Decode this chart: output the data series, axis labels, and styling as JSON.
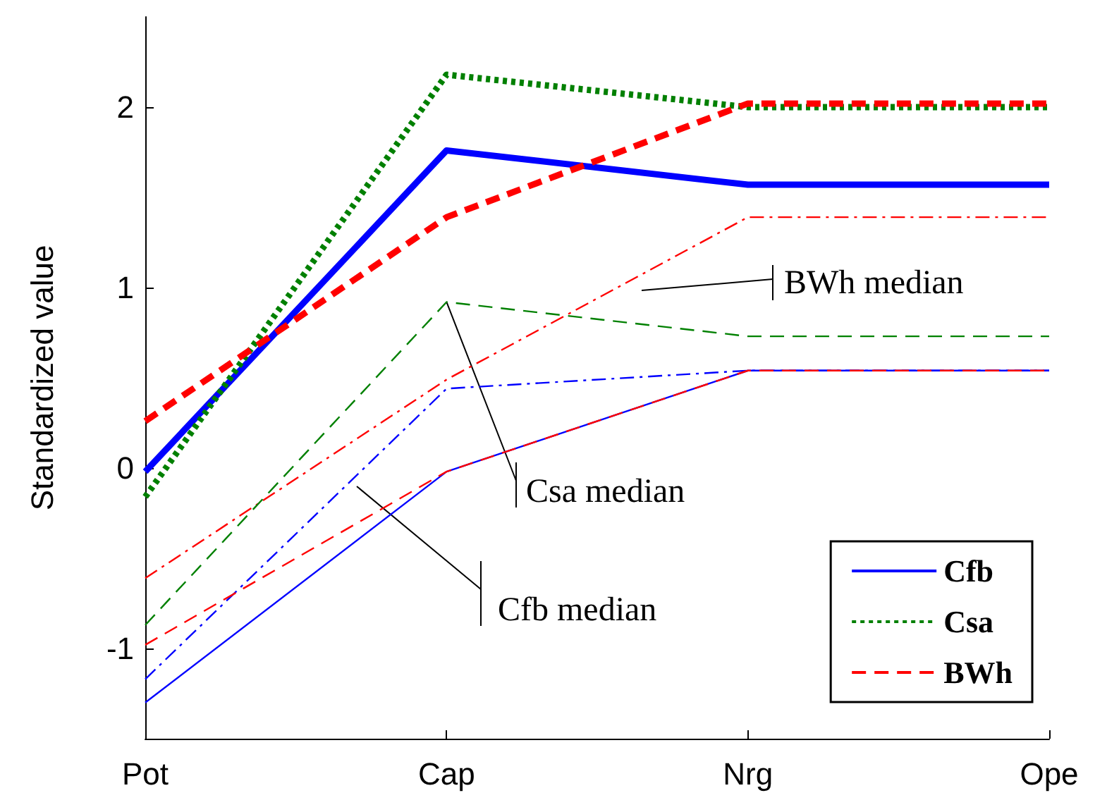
{
  "chart_data": {
    "type": "line",
    "ylabel": "Standardized value",
    "categories": [
      "Pot",
      "Cap",
      "Nrg",
      "Ope"
    ],
    "series": [
      {
        "color": "#ff0000",
        "line_style": "dashdot",
        "values": [
          -0.61,
          0.49,
          1.39,
          1.39
        ]
      },
      {
        "color": "#008000",
        "line_style": "dashed",
        "values": [
          -0.87,
          0.92,
          0.73,
          0.73
        ]
      },
      {
        "color": "#0000ff",
        "line_style": "dashdot",
        "values": [
          -1.17,
          0.44,
          0.54,
          0.54
        ]
      },
      {
        "color": "#0000ff",
        "line_style": "solid",
        "values": [
          -1.3,
          -0.02,
          0.54,
          0.54
        ]
      },
      {
        "color": "#ff0000",
        "line_style": "dashed",
        "values": [
          -0.98,
          -0.02,
          0.54,
          0.54
        ]
      },
      {
        "name": "Cfb",
        "color": "#0000ff",
        "line_style": "solid",
        "values": [
          -0.02,
          1.76,
          1.57,
          1.57
        ]
      },
      {
        "name": "Csa",
        "color": "#008000",
        "line_style": "dotted",
        "values": [
          -0.16,
          2.18,
          2.0,
          2.0
        ]
      },
      {
        "name": "BWh",
        "color": "#ff0000",
        "line_style": "dashed",
        "values": [
          0.26,
          1.39,
          2.02,
          2.02
        ]
      }
    ],
    "ylim": [
      -1.5,
      2.5
    ],
    "yticks": [
      -1,
      0,
      1,
      2
    ],
    "grid": false,
    "legend": "bottom right",
    "marker": "none",
    "annotations": [
      "BWh median",
      {
        "text": "Csa median",
        "x": "Cap",
        "y": 0.92
      },
      "Cfb median"
    ]
  }
}
